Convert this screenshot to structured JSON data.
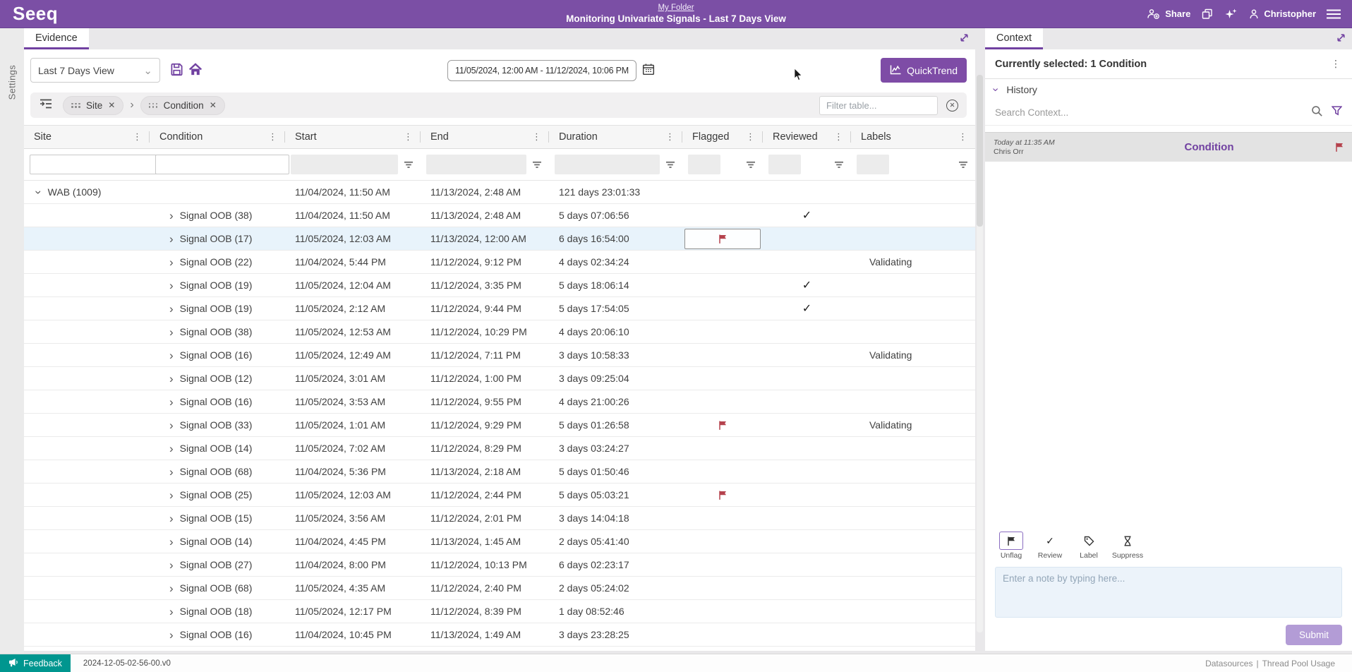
{
  "colors": {
    "brand_purple": "#7b4fa5",
    "accent_purple": "#7141a1",
    "flag_red": "#b5424d",
    "selected_row_bg": "#e8f3fb",
    "feedback_teal": "#00968f"
  },
  "icons": {
    "chevron_right": "›",
    "caret_down": "⌄",
    "check": "✓",
    "kebab": "⋮",
    "close": "✕",
    "chip_separator": "›",
    "pipe": "|"
  },
  "app": {
    "logo": "Seeq",
    "breadcrumb": "My Folder",
    "title": "Monitoring Univariate Signals - Last 7 Days View",
    "share_label": "Share",
    "user_name": "Christopher"
  },
  "left_rail": {
    "settings_label": "Settings"
  },
  "evidence_panel": {
    "tab": "Evidence",
    "view_selector": {
      "value": "Last 7 Days View"
    },
    "date_range": {
      "value": "11/05/2024, 12:00 AM - 11/12/2024, 10:06 PM"
    },
    "quicktrend_label": "QuickTrend",
    "group_chips": [
      "Site",
      "Condition"
    ],
    "filter_input": {
      "placeholder": "Filter table..."
    },
    "table": {
      "columns": [
        "Site",
        "Condition",
        "Start",
        "End",
        "Duration",
        "Flagged",
        "Reviewed",
        "Labels"
      ],
      "rows": [
        {
          "site": "WAB (1009)",
          "expanded": true,
          "start": "11/04/2024, 11:50 AM",
          "end": "11/13/2024, 2:48 AM",
          "duration": "121 days 23:01:33"
        },
        {
          "condition": "Signal OOB (38)",
          "start": "11/04/2024, 11:50 AM",
          "end": "11/13/2024, 2:48 AM",
          "duration": "5 days 07:06:56",
          "reviewed": true
        },
        {
          "condition": "Signal OOB (17)",
          "start": "11/05/2024, 12:03 AM",
          "end": "11/13/2024, 12:00 AM",
          "duration": "6 days 16:54:00",
          "flagged": true,
          "flag_boxed": true,
          "selected": true
        },
        {
          "condition": "Signal OOB (22)",
          "start": "11/04/2024, 5:44 PM",
          "end": "11/12/2024, 9:12 PM",
          "duration": "4 days 02:34:24",
          "label": "Validating"
        },
        {
          "condition": "Signal OOB (19)",
          "start": "11/05/2024, 12:04 AM",
          "end": "11/12/2024, 3:35 PM",
          "duration": "5 days 18:06:14",
          "reviewed": true
        },
        {
          "condition": "Signal OOB (19)",
          "start": "11/05/2024, 2:12 AM",
          "end": "11/12/2024, 9:44 PM",
          "duration": "5 days 17:54:05",
          "reviewed": true
        },
        {
          "condition": "Signal OOB (38)",
          "start": "11/05/2024, 12:53 AM",
          "end": "11/12/2024, 10:29 PM",
          "duration": "4 days 20:06:10"
        },
        {
          "condition": "Signal OOB (16)",
          "start": "11/05/2024, 12:49 AM",
          "end": "11/12/2024, 7:11 PM",
          "duration": "3 days 10:58:33",
          "label": "Validating"
        },
        {
          "condition": "Signal OOB (12)",
          "start": "11/05/2024, 3:01 AM",
          "end": "11/12/2024, 1:00 PM",
          "duration": "3 days 09:25:04"
        },
        {
          "condition": "Signal OOB (16)",
          "start": "11/05/2024, 3:53 AM",
          "end": "11/12/2024, 9:55 PM",
          "duration": "4 days 21:00:26"
        },
        {
          "condition": "Signal OOB (33)",
          "start": "11/05/2024, 1:01 AM",
          "end": "11/12/2024, 9:29 PM",
          "duration": "5 days 01:26:58",
          "flagged": true,
          "label": "Validating"
        },
        {
          "condition": "Signal OOB (14)",
          "start": "11/05/2024, 7:02 AM",
          "end": "11/12/2024, 8:29 PM",
          "duration": "3 days 03:24:27"
        },
        {
          "condition": "Signal OOB (68)",
          "start": "11/04/2024, 5:36 PM",
          "end": "11/13/2024, 2:18 AM",
          "duration": "5 days 01:50:46"
        },
        {
          "condition": "Signal OOB (25)",
          "start": "11/05/2024, 12:03 AM",
          "end": "11/12/2024, 2:44 PM",
          "duration": "5 days 05:03:21",
          "flagged": true
        },
        {
          "condition": "Signal OOB (15)",
          "start": "11/05/2024, 3:56 AM",
          "end": "11/12/2024, 2:01 PM",
          "duration": "3 days 14:04:18"
        },
        {
          "condition": "Signal OOB (14)",
          "start": "11/04/2024, 4:45 PM",
          "end": "11/13/2024, 1:45 AM",
          "duration": "2 days 05:41:40"
        },
        {
          "condition": "Signal OOB (27)",
          "start": "11/04/2024, 8:00 PM",
          "end": "11/12/2024, 10:13 PM",
          "duration": "6 days 02:23:17"
        },
        {
          "condition": "Signal OOB (68)",
          "start": "11/05/2024, 4:35 AM",
          "end": "11/12/2024, 2:40 PM",
          "duration": "2 days 05:24:02"
        },
        {
          "condition": "Signal OOB (18)",
          "start": "11/05/2024, 12:17 PM",
          "end": "11/12/2024, 8:39 PM",
          "duration": "1 day 08:52:46"
        },
        {
          "condition": "Signal OOB (16)",
          "start": "11/04/2024, 10:45 PM",
          "end": "11/13/2024, 1:49 AM",
          "duration": "3 days 23:28:25"
        }
      ]
    }
  },
  "context_panel": {
    "tab": "Context",
    "summary": "Currently selected: 1 Condition",
    "history": {
      "label": "History",
      "search_placeholder": "Search Context...",
      "entries": [
        {
          "time": "Today at 11:35 AM",
          "user": "Chris Orr",
          "type": "Condition",
          "flagged": true
        }
      ]
    },
    "actions": [
      {
        "id": "unflag",
        "label": "Unflag",
        "selected": true
      },
      {
        "id": "review",
        "label": "Review",
        "selected": false
      },
      {
        "id": "label",
        "label": "Label",
        "selected": false
      },
      {
        "id": "suppress",
        "label": "Suppress",
        "selected": false
      }
    ],
    "note": {
      "placeholder": "Enter a note by typing here..."
    },
    "submit_label": "Submit"
  },
  "status_bar": {
    "feedback_label": "Feedback",
    "version": "2024-12-05-02-56-00.v0",
    "links": [
      "Datasources",
      "Thread Pool Usage"
    ]
  }
}
